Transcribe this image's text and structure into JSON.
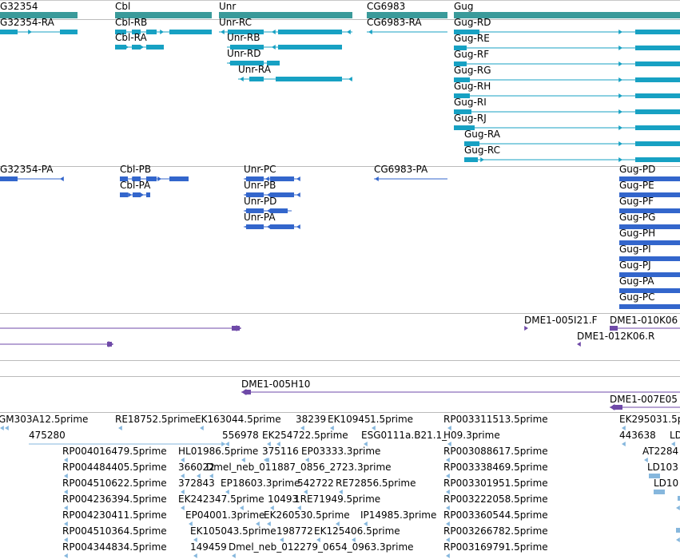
{
  "colors": {
    "gene": "#3a9a9a",
    "transcript": "#17a1c3",
    "protein": "#3366cc",
    "clone": "#6f4aa8",
    "est": "#86b7dd",
    "separator": "#bbbbbb"
  },
  "genes": [
    {
      "label": "G32354"
    },
    {
      "label": "Cbl"
    },
    {
      "label": "Unr"
    },
    {
      "label": "CG6983"
    },
    {
      "label": "Gug"
    }
  ],
  "transcripts": [
    {
      "label": "G32354-RA"
    },
    {
      "label": "Cbl-RB"
    },
    {
      "label": "Cbl-RA"
    },
    {
      "label": "Unr-RC"
    },
    {
      "label": "Unr-RB"
    },
    {
      "label": "Unr-RD"
    },
    {
      "label": "Unr-RA"
    },
    {
      "label": "CG6983-RA"
    },
    {
      "label": "Gug-RD"
    },
    {
      "label": "Gug-RE"
    },
    {
      "label": "Gug-RF"
    },
    {
      "label": "Gug-RG"
    },
    {
      "label": "Gug-RH"
    },
    {
      "label": "Gug-RI"
    },
    {
      "label": "Gug-RJ"
    },
    {
      "label": "Gug-RA"
    },
    {
      "label": "Gug-RC"
    }
  ],
  "proteins": [
    {
      "label": "G32354-PA"
    },
    {
      "label": "Cbl-PB"
    },
    {
      "label": "Cbl-PA"
    },
    {
      "label": "Unr-PC"
    },
    {
      "label": "Unr-PB"
    },
    {
      "label": "Unr-PD"
    },
    {
      "label": "Unr-PA"
    },
    {
      "label": "CG6983-PA"
    },
    {
      "label": "Gug-PD"
    },
    {
      "label": "Gug-PE"
    },
    {
      "label": "Gug-PF"
    },
    {
      "label": "Gug-PG"
    },
    {
      "label": "Gug-PH"
    },
    {
      "label": "Gug-PI"
    },
    {
      "label": "Gug-PJ"
    },
    {
      "label": "Gug-PA"
    },
    {
      "label": "Gug-PC"
    }
  ],
  "clones": [
    {
      "label": "DME1-005I21.F"
    },
    {
      "label": "DME1-010K06"
    },
    {
      "label": "DME1-012K06.R"
    },
    {
      "label": "DME1-005H10"
    },
    {
      "label": "DME1-007E05"
    }
  ],
  "ests": [
    {
      "label": "GM303A12.5prime"
    },
    {
      "label": "RE18752.5prime"
    },
    {
      "label": "EK163044.5prime"
    },
    {
      "label": "38239"
    },
    {
      "label": "EK10945"
    },
    {
      "label": "1.5prime"
    },
    {
      "label": "RP003311513.5prime"
    },
    {
      "label": "EK295031.5p"
    },
    {
      "label": "475280"
    },
    {
      "label": "556978"
    },
    {
      "label": "EK254722.5prime"
    },
    {
      "label": "ESG0111a.B21.1_"
    },
    {
      "label": "H09.3prime"
    },
    {
      "label": "443638"
    },
    {
      "label": "LD"
    },
    {
      "label": "RP004016479.5prime"
    },
    {
      "label": "HL01986.5prime"
    },
    {
      "label": "375116"
    },
    {
      "label": "EP03333.3prime"
    },
    {
      "label": "RP003088617.5prime"
    },
    {
      "label": "AT2284"
    },
    {
      "label": "RP004484405.5prime"
    },
    {
      "label": "366022"
    },
    {
      "label": "Dmel_neb_011887_0856_2723.3prime"
    },
    {
      "label": "RP003338469.5prime"
    },
    {
      "label": "LD103"
    },
    {
      "label": "RP004510622.5prime"
    },
    {
      "label": "372843"
    },
    {
      "label": "EP18603.3prime"
    },
    {
      "label": "542722"
    },
    {
      "label": "RE72856.5prime"
    },
    {
      "label": "RP003301951.5prime"
    },
    {
      "label": "LD10"
    },
    {
      "label": "RP004236394.5prime"
    },
    {
      "label": "EK242347.5prime"
    },
    {
      "label": "10493"
    },
    {
      "label": "1RE71949.5prime"
    },
    {
      "label": "RP003222058.5prime"
    },
    {
      "label": "RP004230411.5prime"
    },
    {
      "label": "EP04001.3prime"
    },
    {
      "label": "EK260530.5prime"
    },
    {
      "label": "IP14985.3prime"
    },
    {
      "label": "RP003360544.5prime"
    },
    {
      "label": "RP004510364.5prime"
    },
    {
      "label": "EK105043.5prime"
    },
    {
      "label": "198772"
    },
    {
      "label": "EK125406.5prime"
    },
    {
      "label": "RP003266782.5prime"
    },
    {
      "label": "RP004344834.5prime"
    },
    {
      "label": "149459"
    },
    {
      "label": "Dmel_neb_012279_0654_0963.3prime"
    },
    {
      "label": "RP003169791.5prime"
    }
  ]
}
